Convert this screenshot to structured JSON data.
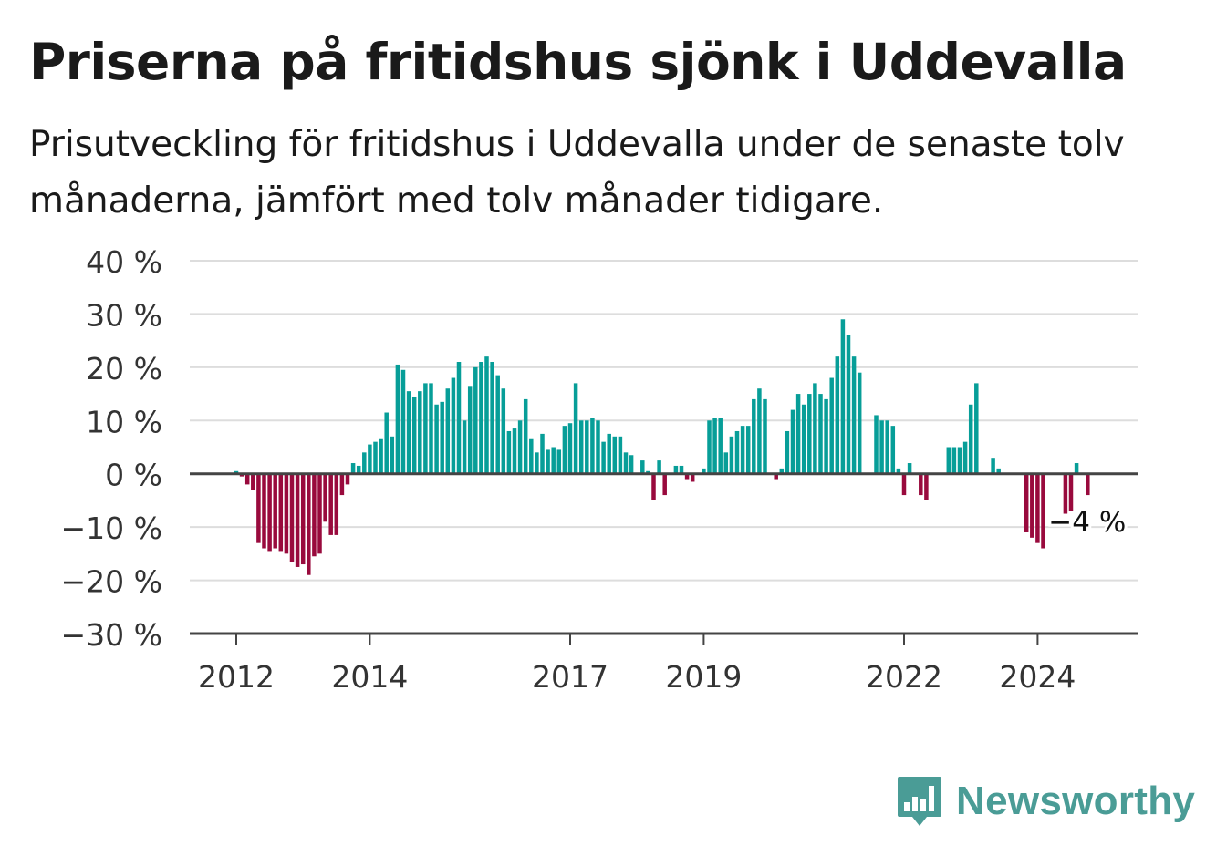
{
  "chart_data": {
    "type": "bar",
    "title": "Priserna på fritidshus sjönk i Uddevalla",
    "subtitle": "Prisutveckling för fritidshus i Uddevalla under de senaste tolv månaderna, jämfört med tolv månader tidigare.",
    "ylabel": "",
    "xlabel": "",
    "ylim": [
      -30,
      40
    ],
    "yticks": [
      {
        "value": 40,
        "label": "40 %"
      },
      {
        "value": 30,
        "label": "30 %"
      },
      {
        "value": 20,
        "label": "20 %"
      },
      {
        "value": 10,
        "label": "10 %"
      },
      {
        "value": 0,
        "label": "0 %"
      },
      {
        "value": -10,
        "label": "−10 %"
      },
      {
        "value": -20,
        "label": "−20 %"
      },
      {
        "value": -30,
        "label": "−30 %"
      }
    ],
    "xticks": [
      {
        "year": 2012,
        "label": "2012"
      },
      {
        "year": 2014,
        "label": "2014"
      },
      {
        "year": 2017,
        "label": "2017"
      },
      {
        "year": 2019,
        "label": "2019"
      },
      {
        "year": 2022,
        "label": "2022"
      },
      {
        "year": 2024,
        "label": "2024"
      }
    ],
    "x_start": "2012-01",
    "grid": true,
    "colors": {
      "positive": "#079e98",
      "negative": "#990a3d",
      "grid": "#dddddd",
      "axis": "#444444"
    },
    "values": [
      0.5,
      -0.5,
      -2,
      -3,
      -13,
      -14,
      -14.5,
      -14,
      -14.5,
      -15,
      -16.5,
      -17.5,
      -17,
      -19,
      -15.5,
      -15,
      -9,
      -11.5,
      -11.5,
      -4,
      -2,
      2,
      1.5,
      4,
      5.5,
      6,
      6.5,
      11.5,
      7,
      20.5,
      19.5,
      15.5,
      14.5,
      15.5,
      17,
      17,
      13,
      13.5,
      16,
      18,
      21,
      10,
      16.5,
      20,
      21,
      22,
      21,
      18.5,
      16,
      8,
      8.5,
      10,
      14,
      6.5,
      4,
      7.5,
      4.5,
      5,
      4.5,
      9,
      9.5,
      17,
      10,
      10,
      10.5,
      10,
      6,
      7.5,
      7,
      7,
      4,
      3.5,
      0,
      2.5,
      0.5,
      -5,
      2.5,
      -4,
      0,
      1.5,
      1.5,
      -1,
      -1.5,
      0,
      1,
      10,
      10.5,
      10.5,
      4,
      7,
      8,
      9,
      9,
      14,
      16,
      14,
      0,
      -1,
      1,
      8,
      12,
      15,
      13,
      15,
      17,
      15,
      14,
      18,
      22,
      29,
      26,
      22,
      19,
      0,
      0,
      11,
      10,
      10,
      9,
      1,
      -4,
      2,
      0,
      -4,
      -5,
      0,
      0,
      0,
      5,
      5,
      5,
      6,
      13,
      17,
      0,
      0,
      3,
      1,
      0,
      0,
      0,
      0,
      -11,
      -12,
      -13,
      -14,
      0,
      0,
      0,
      -7.5,
      -7,
      2,
      0,
      -4
    ],
    "annotation": {
      "label": "−4 %"
    }
  },
  "logo": {
    "name": "Newsworthy",
    "icon": "newsworthy-chart-bubble-icon"
  }
}
